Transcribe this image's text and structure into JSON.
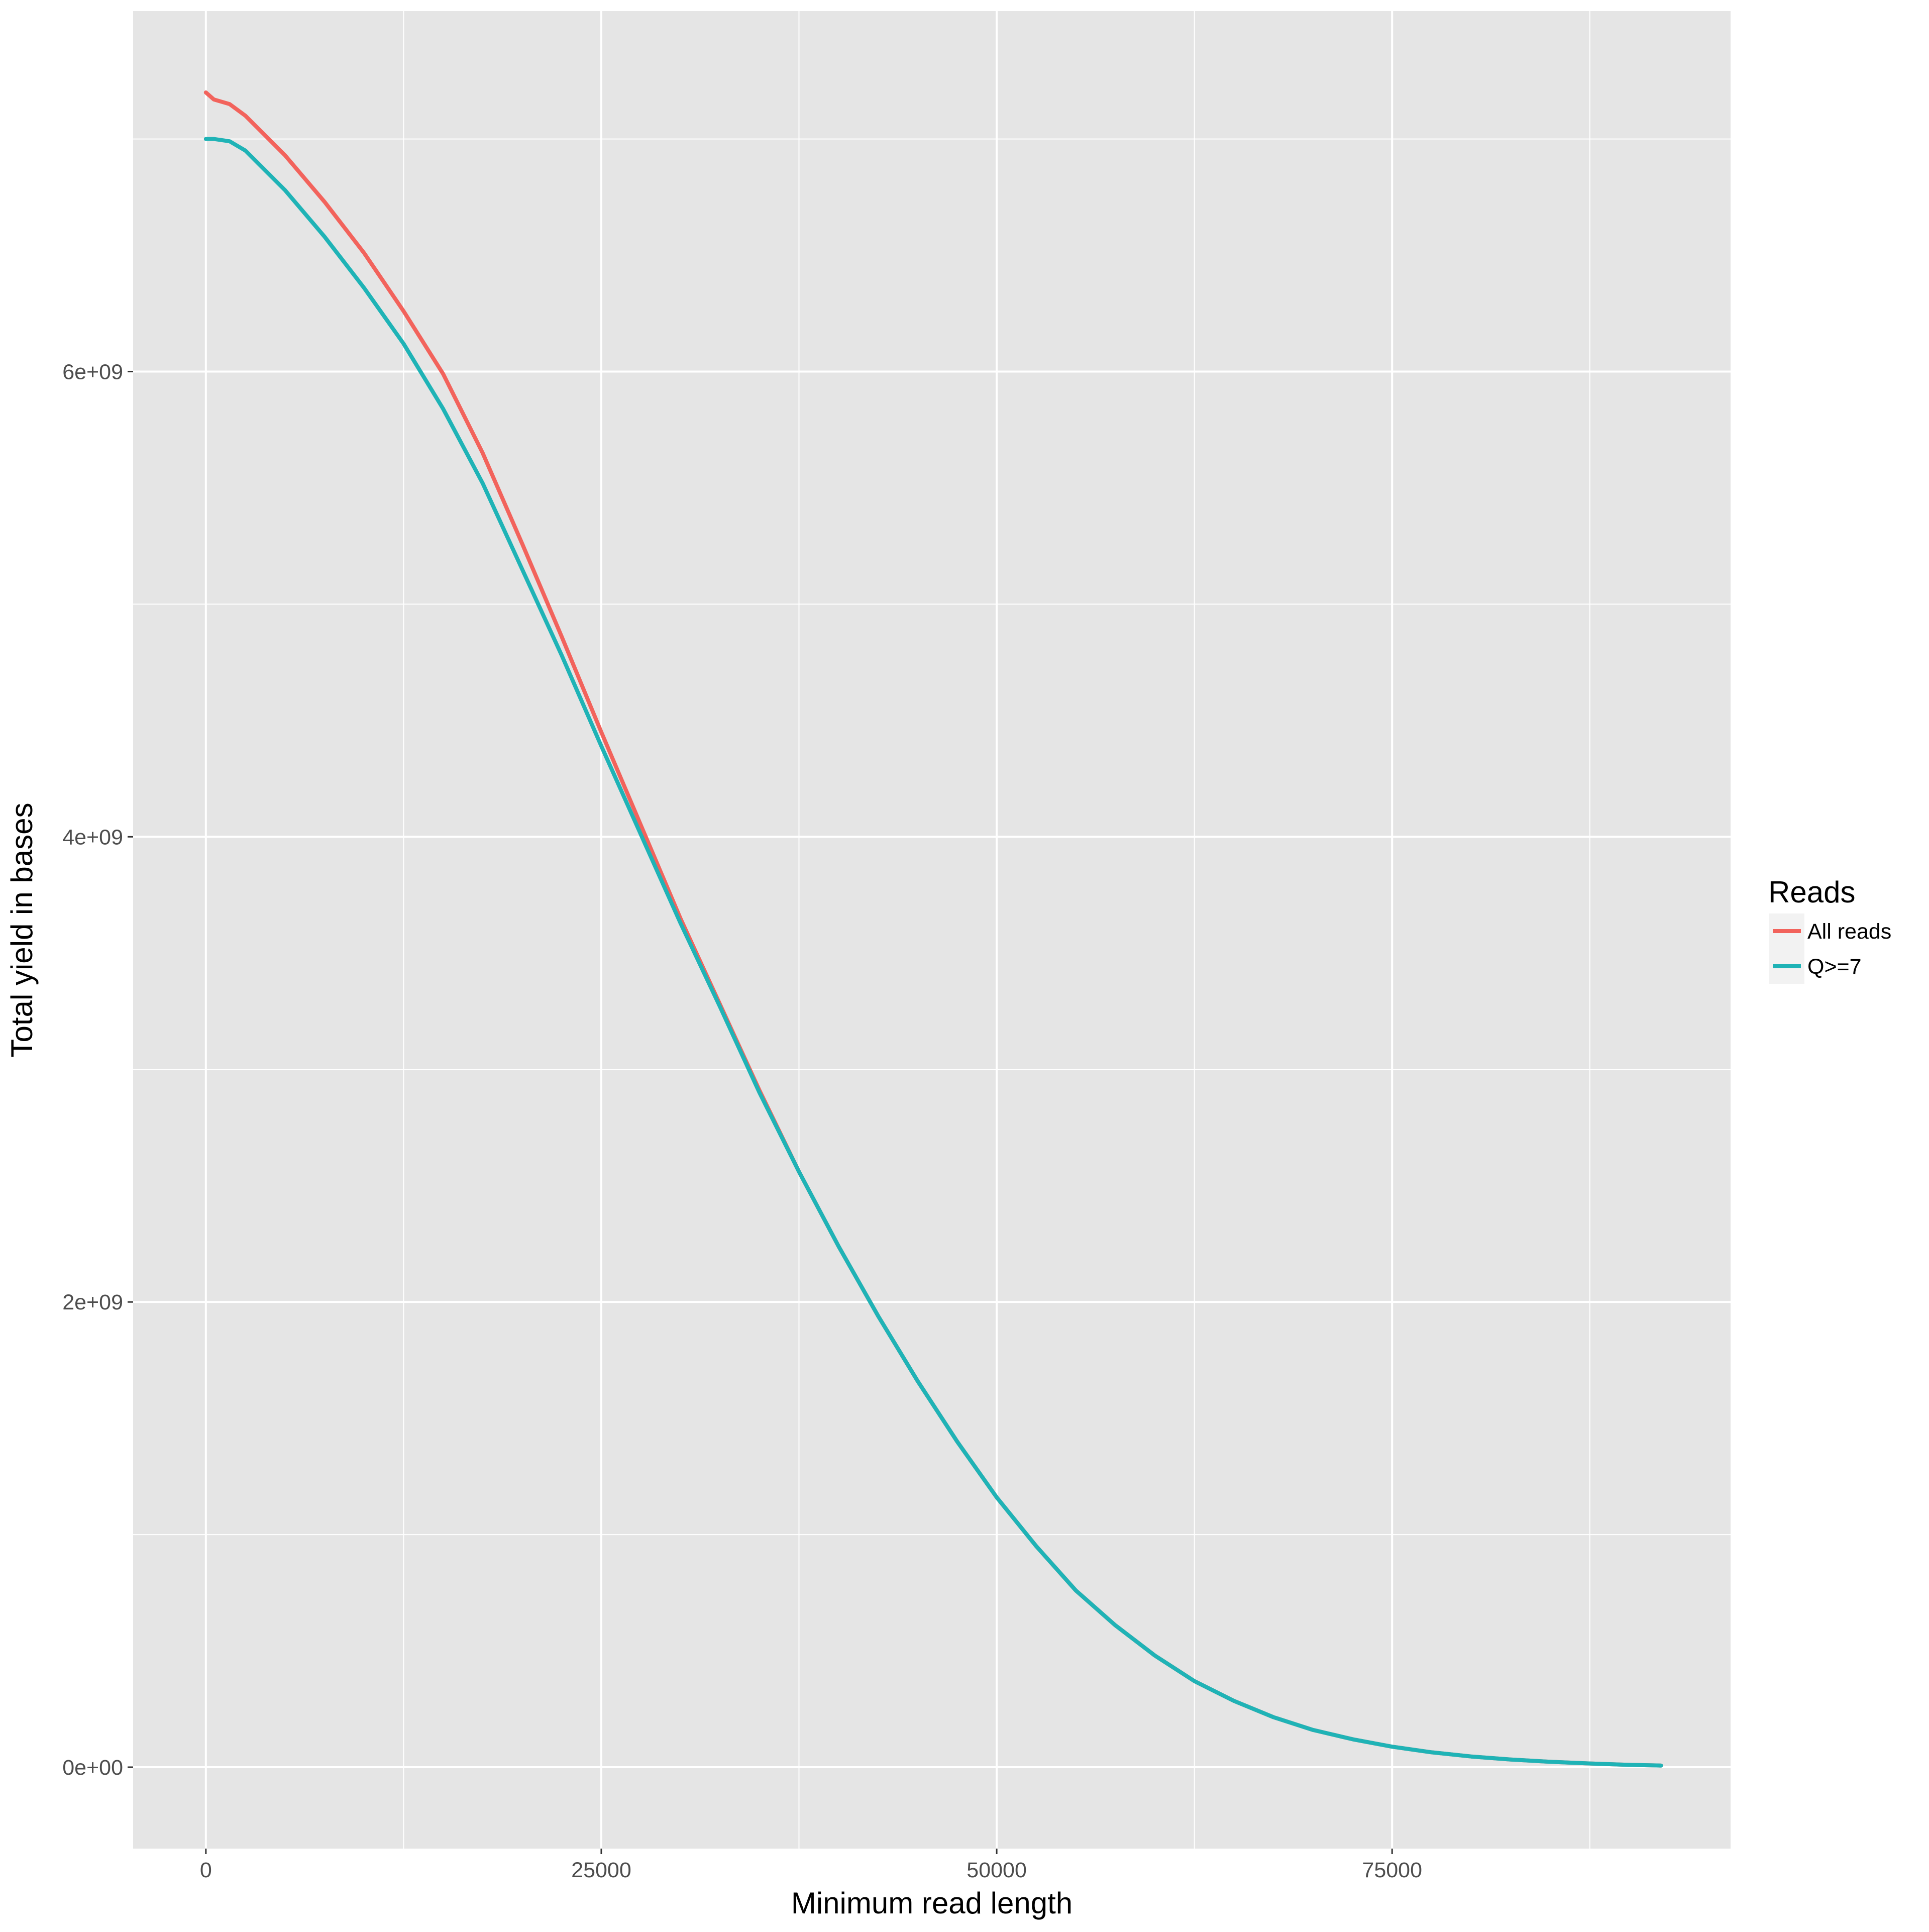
{
  "chart_data": {
    "type": "line",
    "xlabel": "Minimum read length",
    "ylabel": "Total yield in bases",
    "xlim": [
      -4600,
      96400
    ],
    "ylim": [
      -350000000,
      7550000000
    ],
    "x_ticks": [
      0,
      25000,
      50000,
      75000
    ],
    "x_tick_labels": [
      "0",
      "25000",
      "50000",
      "75000"
    ],
    "x_minor_ticks": [
      12500,
      37500,
      62500,
      87500
    ],
    "y_ticks": [
      0,
      2000000000,
      4000000000,
      6000000000
    ],
    "y_tick_labels": [
      "0e+00",
      "2e+09",
      "4e+09",
      "6e+09"
    ],
    "y_minor_ticks": [
      1000000000,
      3000000000,
      5000000000,
      7000000000
    ],
    "grid": true,
    "legend": {
      "title": "Reads",
      "placement": "right",
      "entries": [
        "All reads",
        "Q>=7"
      ]
    },
    "colors": {
      "panel_background": "#e5e5e5",
      "grid": "#ffffff",
      "All reads": "#f2635c",
      "Q>=7": "#1fb3b6"
    },
    "series": [
      {
        "name": "All reads",
        "x": [
          0,
          500,
          1500,
          2500,
          5000,
          7500,
          10000,
          12500,
          15000,
          17500,
          20000,
          22500,
          25000,
          27500,
          30000,
          32500,
          35000,
          37500,
          40000,
          42500,
          45000,
          47500,
          50000,
          52500,
          55000,
          57500,
          60000,
          62500,
          65000,
          67500,
          70000,
          72500,
          75000,
          77500,
          80000,
          82500,
          85000,
          87500,
          90000,
          92000
        ],
        "y": [
          7200000000,
          7170000000,
          7150000000,
          7100000000,
          6930000000,
          6730000000,
          6510000000,
          6260000000,
          5990000000,
          5650000000,
          5260000000,
          4860000000,
          4450000000,
          4050000000,
          3650000000,
          3280000000,
          2910000000,
          2560000000,
          2240000000,
          1940000000,
          1660000000,
          1400000000,
          1160000000,
          950000000,
          760000000,
          610000000,
          480000000,
          370000000,
          285000000,
          215000000,
          160000000,
          120000000,
          88000000,
          64000000,
          46000000,
          33000000,
          23000000,
          16000000,
          10000000,
          7000000
        ]
      },
      {
        "name": "Q>=7",
        "x": [
          0,
          500,
          1500,
          2500,
          5000,
          7500,
          10000,
          12500,
          15000,
          17500,
          20000,
          22500,
          25000,
          27500,
          30000,
          32500,
          35000,
          37500,
          40000,
          42500,
          45000,
          47500,
          50000,
          52500,
          55000,
          57500,
          60000,
          62500,
          65000,
          67500,
          70000,
          72500,
          75000,
          77500,
          80000,
          82500,
          85000,
          87500,
          90000,
          92000
        ],
        "y": [
          7000000000,
          7000000000,
          6990000000,
          6950000000,
          6780000000,
          6580000000,
          6360000000,
          6120000000,
          5840000000,
          5520000000,
          5150000000,
          4780000000,
          4390000000,
          4010000000,
          3630000000,
          3270000000,
          2900000000,
          2560000000,
          2240000000,
          1940000000,
          1660000000,
          1400000000,
          1160000000,
          950000000,
          760000000,
          610000000,
          480000000,
          370000000,
          285000000,
          215000000,
          160000000,
          120000000,
          88000000,
          64000000,
          46000000,
          33000000,
          23000000,
          16000000,
          10000000,
          7000000
        ]
      }
    ]
  }
}
